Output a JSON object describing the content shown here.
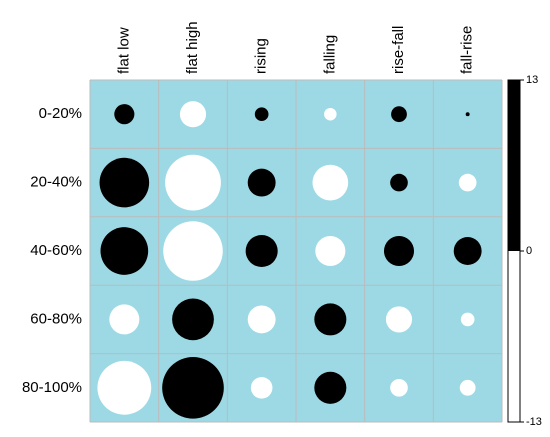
{
  "chart_data": {
    "type": "balloon",
    "categories": [
      "flat low",
      "flat high",
      "rising",
      "falling",
      "rise-fall",
      "fall-rise"
    ],
    "series": [
      {
        "name": "0-20%",
        "values": [
          1.3,
          -2.2,
          0.6,
          -0.5,
          0.8,
          0.05
        ]
      },
      {
        "name": "20-40%",
        "values": [
          7.9,
          -10.0,
          2.5,
          -4.1,
          1.0,
          -1.0
        ]
      },
      {
        "name": "40-60%",
        "values": [
          7.3,
          -11.4,
          3.3,
          -2.9,
          2.9,
          2.5
        ]
      },
      {
        "name": "60-80%",
        "values": [
          -2.9,
          5.6,
          -2.5,
          3.3,
          -2.2,
          -0.6
        ]
      },
      {
        "name": "80-100%",
        "values": [
          -9.3,
          12.2,
          -1.5,
          3.3,
          -1.0,
          -0.8
        ]
      }
    ],
    "positive_color": "#000000",
    "negative_color": "#ffffff",
    "cell_color": "#9dd9e5",
    "colorbar_lim": [
      -13,
      13
    ],
    "colorbar_ticks": [
      13,
      0,
      -13
    ]
  }
}
